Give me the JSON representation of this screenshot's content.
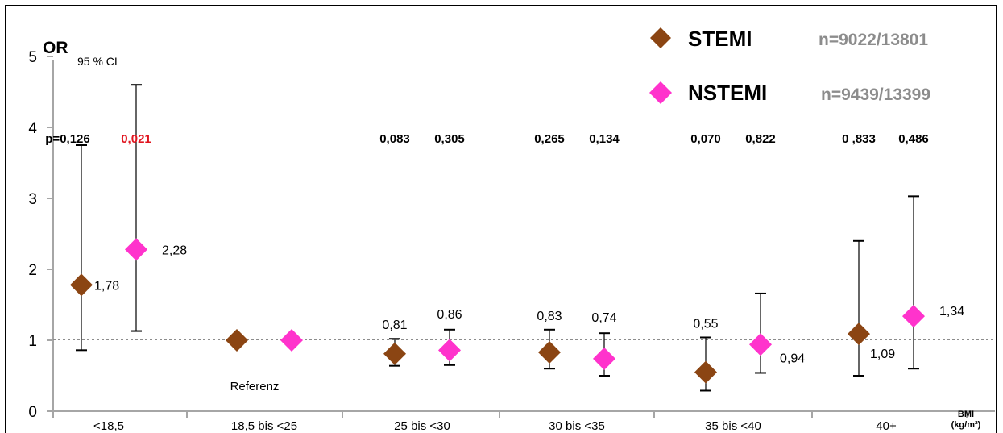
{
  "chart_data": {
    "type": "scatter",
    "y_axis_title": "OR",
    "ci_label": "95 % CI",
    "x_axis_title_line1": "BMI",
    "x_axis_title_line2": "(kg/m²)",
    "ylim": [
      0,
      5
    ],
    "y_ticks": [
      "0",
      "1",
      "2",
      "3",
      "4",
      "5"
    ],
    "reference_line": 1,
    "reference_label": "Referenz",
    "grid": false,
    "legend_position": "top-right",
    "categories": [
      "<18,5",
      "18,5 bis <25",
      "25 bis <30",
      "30 bis <35",
      "35 bis <40",
      "40+"
    ],
    "series": [
      {
        "name": "STEMI",
        "n_label": "n=9022/13801",
        "color": "#8B4513",
        "values": [
          1.78,
          1.0,
          0.81,
          0.83,
          0.55,
          1.09
        ],
        "ci_low": [
          0.86,
          null,
          0.64,
          0.6,
          0.29,
          0.5
        ],
        "ci_high": [
          3.75,
          null,
          1.02,
          1.15,
          1.04,
          2.4
        ],
        "value_labels": [
          "1,78",
          "",
          "0,81",
          "0,83",
          "0,55",
          "1,09"
        ],
        "p_values": [
          "p=0,126",
          "",
          "0,083",
          "0,265",
          "0,070",
          "0 ,833"
        ]
      },
      {
        "name": "NSTEMI",
        "n_label": "n=9439/13399",
        "color": "#FF33CC",
        "values": [
          2.28,
          1.0,
          0.86,
          0.74,
          0.94,
          1.34
        ],
        "ci_low": [
          1.13,
          null,
          0.65,
          0.5,
          0.54,
          0.6
        ],
        "ci_high": [
          4.6,
          null,
          1.15,
          1.1,
          1.66,
          3.03
        ],
        "value_labels": [
          "2,28",
          "",
          "0,86",
          "0,74",
          "0,94",
          "1,34"
        ],
        "p_values": [
          "0,021",
          "",
          "0,305",
          "0,134",
          "0,822",
          "0,486"
        ]
      }
    ],
    "p_highlight_color": "#E0141E",
    "axis_color": "#A6A6A6"
  }
}
